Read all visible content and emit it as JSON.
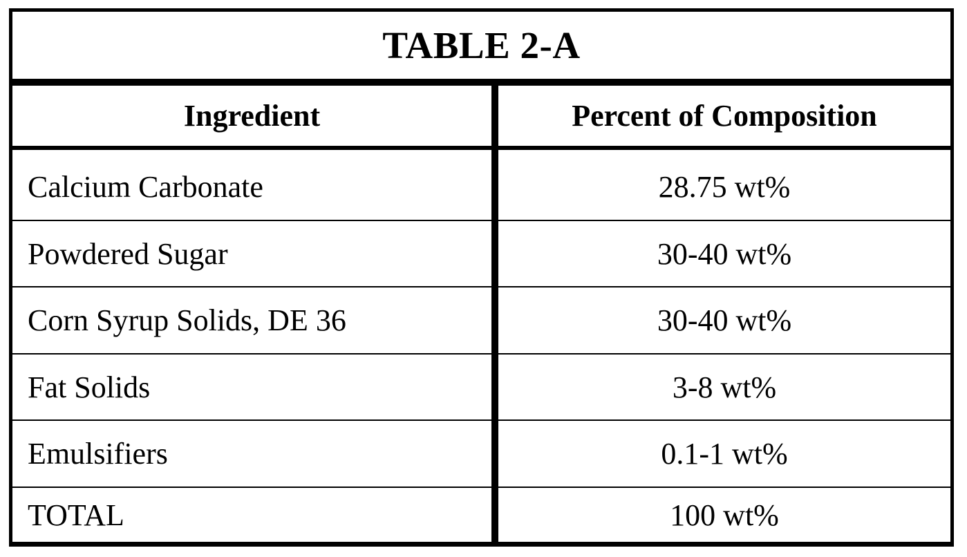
{
  "table": {
    "title": "TABLE 2-A",
    "headers": [
      "Ingredient",
      "Percent of Composition"
    ],
    "rows": [
      [
        "Calcium Carbonate",
        "28.75 wt%"
      ],
      [
        "Powdered Sugar",
        "30-40 wt%"
      ],
      [
        "Corn Syrup Solids, DE 36",
        "30-40 wt%"
      ],
      [
        "Fat Solids",
        "3-8 wt%"
      ],
      [
        "Emulsifiers",
        "0.1-1 wt%"
      ],
      [
        "TOTAL",
        "100 wt%"
      ]
    ]
  }
}
